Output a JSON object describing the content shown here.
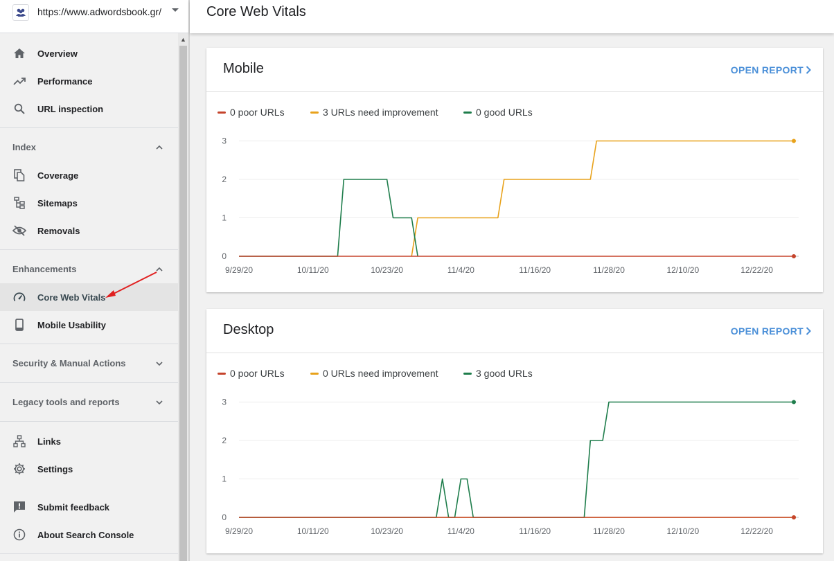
{
  "property": {
    "url": "https://www.adwordsbook.gr/"
  },
  "header": {
    "title": "Core Web Vitals"
  },
  "sidebar": {
    "top_items": [
      {
        "label": "Overview",
        "icon": "home-icon"
      },
      {
        "label": "Performance",
        "icon": "trending-up-icon"
      },
      {
        "label": "URL inspection",
        "icon": "search-icon"
      }
    ],
    "index": {
      "label": "Index",
      "items": [
        {
          "label": "Coverage",
          "icon": "file-copy-icon"
        },
        {
          "label": "Sitemaps",
          "icon": "sitemap-icon"
        },
        {
          "label": "Removals",
          "icon": "eye-off-icon"
        }
      ]
    },
    "enhancements": {
      "label": "Enhancements",
      "items": [
        {
          "label": "Core Web Vitals",
          "icon": "speedometer-icon"
        },
        {
          "label": "Mobile Usability",
          "icon": "smartphone-icon"
        }
      ]
    },
    "security": {
      "label": "Security & Manual Actions"
    },
    "legacy": {
      "label": "Legacy tools and reports"
    },
    "bottom_items": [
      {
        "label": "Links",
        "icon": "links-icon"
      },
      {
        "label": "Settings",
        "icon": "gear-icon"
      },
      {
        "label": "Submit feedback",
        "icon": "feedback-icon"
      },
      {
        "label": "About Search Console",
        "icon": "info-icon"
      }
    ]
  },
  "colors": {
    "poor": "#c5442c",
    "improve": "#e8a21b",
    "good": "#1e7d4b",
    "link": "#4a8fd8",
    "annotation": "#e02020"
  },
  "cards": [
    {
      "title": "Mobile",
      "action": "OPEN REPORT",
      "legend": {
        "poor": "0 poor URLs",
        "improve": "3 URLs need improvement",
        "good": "0 good URLs"
      }
    },
    {
      "title": "Desktop",
      "action": "OPEN REPORT",
      "legend": {
        "poor": "0 poor URLs",
        "improve": "0 URLs need improvement",
        "good": "3 good URLs"
      }
    }
  ],
  "chart_data": [
    {
      "type": "line",
      "title": "Mobile",
      "x_ticks": [
        "9/29/20",
        "10/11/20",
        "10/23/20",
        "11/4/20",
        "11/16/20",
        "11/28/20",
        "12/10/20",
        "12/22/20"
      ],
      "y_ticks": [
        0,
        1,
        2,
        3
      ],
      "ylim": [
        0,
        3
      ],
      "xlim": [
        "9/29/20",
        "12/28/20"
      ],
      "series": [
        {
          "name": "0 poor URLs",
          "color": "#c5442c",
          "points": [
            [
              "9/29/20",
              0
            ],
            [
              "12/28/20",
              0
            ]
          ]
        },
        {
          "name": "3 URLs need improvement",
          "color": "#e8a21b",
          "points": [
            [
              "10/27/20",
              0
            ],
            [
              "10/28/20",
              1
            ],
            [
              "11/10/20",
              1
            ],
            [
              "11/11/20",
              2
            ],
            [
              "11/25/20",
              2
            ],
            [
              "11/26/20",
              3
            ],
            [
              "12/28/20",
              3
            ]
          ]
        },
        {
          "name": "0 good URLs",
          "color": "#1e7d4b",
          "points": [
            [
              "9/29/20",
              0
            ],
            [
              "10/15/20",
              0
            ],
            [
              "10/16/20",
              2
            ],
            [
              "10/23/20",
              2
            ],
            [
              "10/24/20",
              1
            ],
            [
              "10/27/20",
              1
            ],
            [
              "10/28/20",
              0
            ]
          ]
        }
      ]
    },
    {
      "type": "line",
      "title": "Desktop",
      "x_ticks": [
        "9/29/20",
        "10/11/20",
        "10/23/20",
        "11/4/20",
        "11/16/20",
        "11/28/20",
        "12/10/20",
        "12/22/20"
      ],
      "y_ticks": [
        0,
        1,
        2,
        3
      ],
      "ylim": [
        0,
        3
      ],
      "xlim": [
        "9/29/20",
        "12/28/20"
      ],
      "series": [
        {
          "name": "0 poor URLs",
          "color": "#c5442c",
          "points": [
            [
              "9/29/20",
              0
            ],
            [
              "12/28/20",
              0
            ]
          ]
        },
        {
          "name": "0 URLs need improvement",
          "color": "#e8a21b",
          "points": [
            [
              "9/29/20",
              0
            ],
            [
              "12/28/20",
              0
            ]
          ]
        },
        {
          "name": "3 good URLs",
          "color": "#1e7d4b",
          "points": [
            [
              "9/29/20",
              0
            ],
            [
              "10/31/20",
              0
            ],
            [
              "11/1/20",
              1
            ],
            [
              "11/2/20",
              0
            ],
            [
              "11/3/20",
              0
            ],
            [
              "11/4/20",
              1
            ],
            [
              "11/5/20",
              1
            ],
            [
              "11/6/20",
              0
            ],
            [
              "11/24/20",
              0
            ],
            [
              "11/25/20",
              2
            ],
            [
              "11/27/20",
              2
            ],
            [
              "11/28/20",
              3
            ],
            [
              "12/28/20",
              3
            ]
          ]
        }
      ]
    }
  ]
}
